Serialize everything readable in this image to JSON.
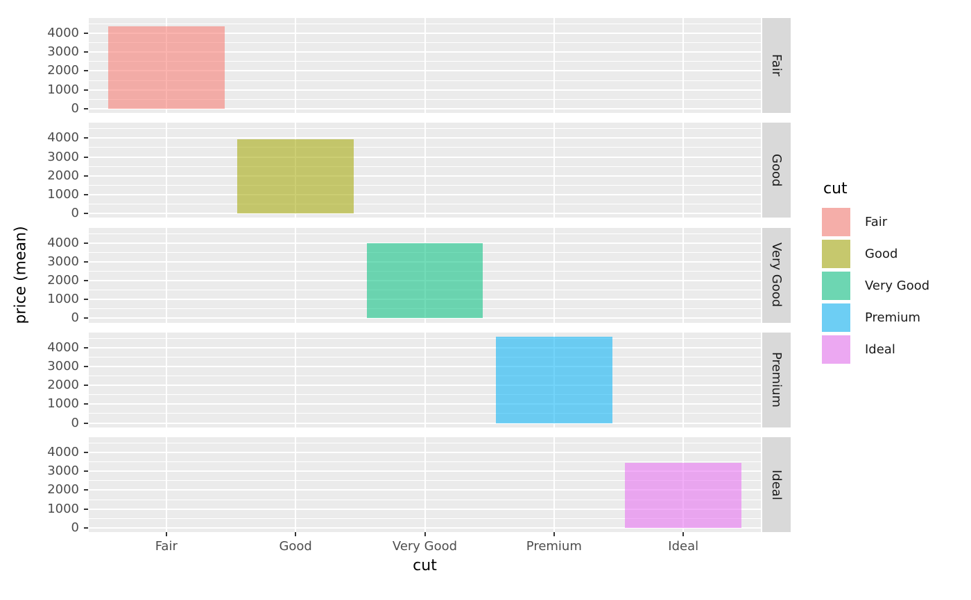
{
  "chart_data": {
    "type": "bar",
    "title": "",
    "xlabel": "cut",
    "ylabel": "price (mean)",
    "faceted": true,
    "facet_variable": "cut",
    "facet_labels": [
      "Fair",
      "Good",
      "Very Good",
      "Premium",
      "Ideal"
    ],
    "categories": [
      "Fair",
      "Good",
      "Very Good",
      "Premium",
      "Ideal"
    ],
    "values": [
      4359,
      3929,
      3982,
      4584,
      3458
    ],
    "bar_colors": [
      "#F8766D",
      "#A3A500",
      "#00BF7D",
      "#00B0F6",
      "#E76BF3"
    ],
    "fill_alpha": 0.55,
    "bar_width_fraction": 0.9,
    "yticks": [
      0,
      1000,
      2000,
      3000,
      4000
    ],
    "yticks_minor": [
      500,
      1500,
      2500,
      3500,
      4500
    ],
    "ylim": [
      0,
      4584
    ],
    "grid": true,
    "legend": {
      "title": "cut",
      "position": "right",
      "entries": [
        {
          "label": "Fair",
          "color": "#F8766D"
        },
        {
          "label": "Good",
          "color": "#A3A500"
        },
        {
          "label": "Very Good",
          "color": "#00BF7D"
        },
        {
          "label": "Premium",
          "color": "#00B0F6"
        },
        {
          "label": "Ideal",
          "color": "#E76BF3"
        }
      ]
    },
    "theme": {
      "panel_bg": "#EBEBEB",
      "grid_color": "#FFFFFF",
      "strip_bg": "#D9D9D9",
      "strip_text": "#1A1A1A",
      "axis_text": "#4D4D4D",
      "axis_title": "#000000",
      "tick_color": "#333333",
      "background": "#FFFFFF"
    }
  }
}
